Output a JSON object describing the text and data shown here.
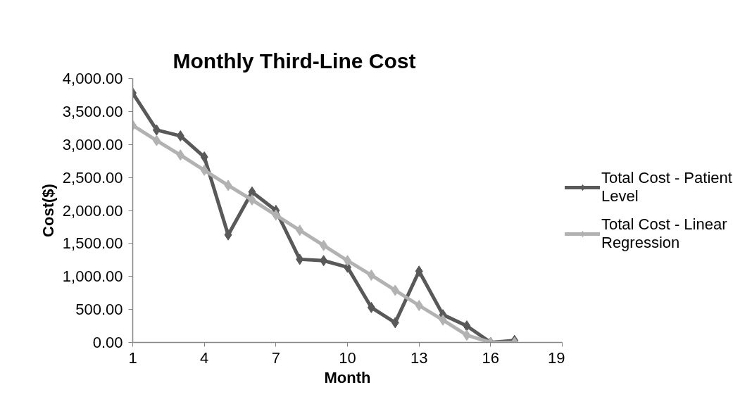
{
  "chart_data": {
    "type": "line",
    "title": "Monthly Third-Line Cost",
    "xlabel": "Month",
    "ylabel": "Cost($)",
    "x": [
      1,
      2,
      3,
      4,
      5,
      6,
      7,
      8,
      9,
      10,
      11,
      12,
      13,
      14,
      15,
      16,
      17
    ],
    "series": [
      {
        "name": "Total Cost - Patient Level",
        "color": "#595959",
        "values": [
          3780,
          3220,
          3130,
          2810,
          1630,
          2280,
          2000,
          1260,
          1240,
          1140,
          530,
          300,
          1080,
          420,
          250,
          0,
          30
        ]
      },
      {
        "name": "Total Cost - Linear Regression",
        "color": "#b2b2b2",
        "values": [
          3290,
          3060,
          2840,
          2610,
          2380,
          2160,
          1930,
          1700,
          1470,
          1240,
          1020,
          790,
          560,
          340,
          110,
          0,
          0
        ]
      }
    ],
    "xlim": [
      1,
      19
    ],
    "xticks": [
      1,
      4,
      7,
      10,
      13,
      16,
      19
    ],
    "ylim": [
      0,
      4000
    ],
    "yticks": [
      {
        "value": 0,
        "label": "0.00"
      },
      {
        "value": 500,
        "label": "500.00"
      },
      {
        "value": 1000,
        "label": "1,000.00"
      },
      {
        "value": 1500,
        "label": "1,500.00"
      },
      {
        "value": 2000,
        "label": "2,000.00"
      },
      {
        "value": 2500,
        "label": "2,500.00"
      },
      {
        "value": 3000,
        "label": "3,000.00"
      },
      {
        "value": 3500,
        "label": "3,500.00"
      },
      {
        "value": 4000,
        "label": "4,000.00"
      }
    ],
    "grid": false,
    "legend": "right",
    "marker": "diamond",
    "line_style": "solid"
  }
}
